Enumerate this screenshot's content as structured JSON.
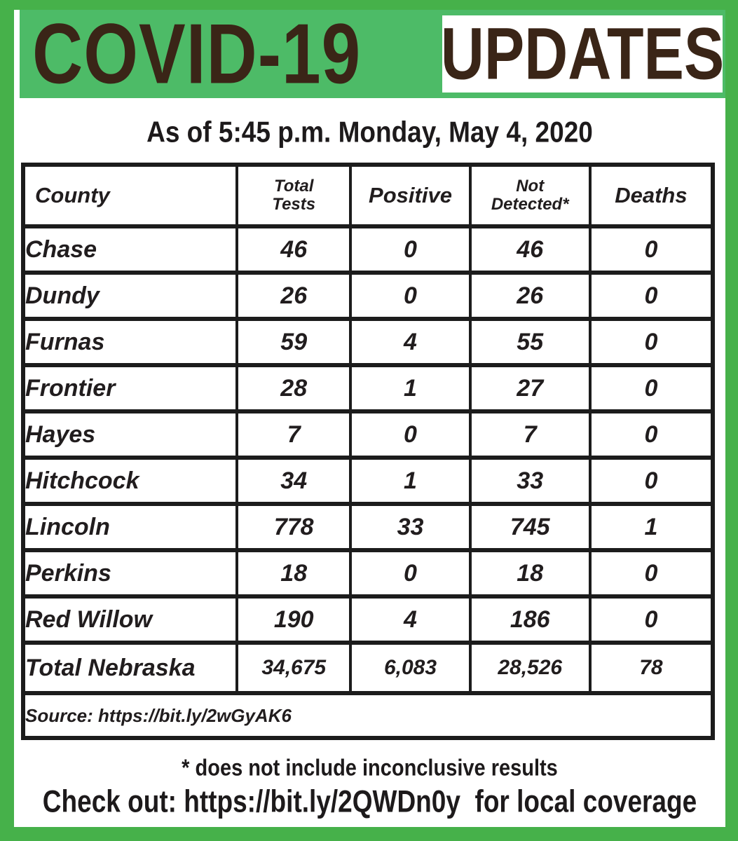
{
  "theme": {
    "frame_green": "#46B14A",
    "band_green": "#4DBB67",
    "headline_brown": "#3A2517",
    "ink_black": "#211D1E",
    "table_line": "#1C1C1C"
  },
  "header": {
    "title_left": "COVID-19",
    "title_right": "UPDATES",
    "as_of": "As of 5:45 p.m. Monday, May 4, 2020"
  },
  "table": {
    "columns": [
      {
        "key": "county",
        "label": "County",
        "small": false
      },
      {
        "key": "total_tests",
        "label": "Total\nTests",
        "small": true
      },
      {
        "key": "positive",
        "label": "Positive",
        "small": false
      },
      {
        "key": "not_detected",
        "label": "Not\nDetected*",
        "small": true
      },
      {
        "key": "deaths",
        "label": "Deaths",
        "small": false
      }
    ],
    "rows": [
      {
        "county": "Chase",
        "total_tests": "46",
        "positive": "0",
        "not_detected": "46",
        "deaths": "0"
      },
      {
        "county": "Dundy",
        "total_tests": "26",
        "positive": "0",
        "not_detected": "26",
        "deaths": "0"
      },
      {
        "county": "Furnas",
        "total_tests": "59",
        "positive": "4",
        "not_detected": "55",
        "deaths": "0"
      },
      {
        "county": "Frontier",
        "total_tests": "28",
        "positive": "1",
        "not_detected": "27",
        "deaths": "0"
      },
      {
        "county": "Hayes",
        "total_tests": "7",
        "positive": "0",
        "not_detected": "7",
        "deaths": "0"
      },
      {
        "county": "Hitchcock",
        "total_tests": "34",
        "positive": "1",
        "not_detected": "33",
        "deaths": "0"
      },
      {
        "county": "Lincoln",
        "total_tests": "778",
        "positive": "33",
        "not_detected": "745",
        "deaths": "1"
      },
      {
        "county": "Perkins",
        "total_tests": "18",
        "positive": "0",
        "not_detected": "18",
        "deaths": "0"
      },
      {
        "county": "Red Willow",
        "total_tests": "190",
        "positive": "4",
        "not_detected": "186",
        "deaths": "0"
      }
    ],
    "total_row": {
      "county": "Total Nebraska",
      "total_tests": "34,675",
      "positive": "6,083",
      "not_detected": "28,526",
      "deaths": "78"
    },
    "source": "Source: https://bit.ly/2wGyAK6"
  },
  "footer": {
    "note": "* does not include inconclusive results",
    "check_out": "Check out: https://bit.ly/2QWDn0y  for local coverage"
  }
}
